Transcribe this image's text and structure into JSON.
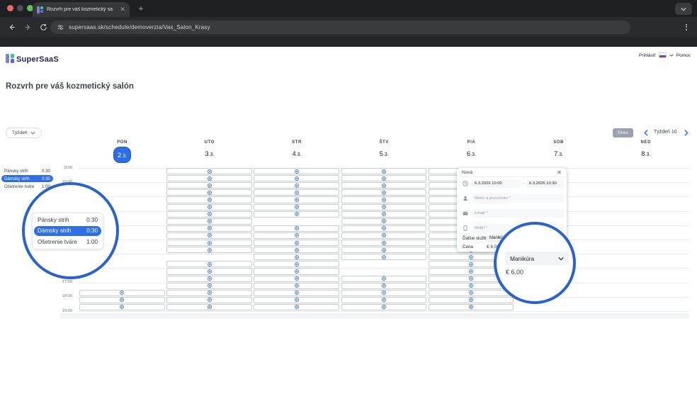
{
  "browser": {
    "tab_title": "Rozvrh pre váš kozmetický sa",
    "url": "supersaas.sk/schedule/demoverzia/Vas_Salon_Krasy"
  },
  "site": {
    "brand": "SuperSaaS",
    "login_label": "Prihlásiť",
    "help_label": "Pomoc"
  },
  "page": {
    "title": "Rozvrh pre váš kozmetický salón"
  },
  "controls": {
    "view_label": "Týždeň",
    "today_label": "Dnes",
    "week_label": "Týždeň 10"
  },
  "services": [
    {
      "name": "Pánsky strih",
      "duration": "0:30",
      "selected": false
    },
    {
      "name": "Dámsky strih",
      "duration": "0:30",
      "selected": true
    },
    {
      "name": "Ošetrenie tváre",
      "duration": "1:00",
      "selected": false
    }
  ],
  "calendar": {
    "hour_labels": [
      "9:00",
      "10:00",
      "11:00",
      "12:00",
      "13:00",
      "14:00",
      "15:00",
      "16:00",
      "17:00",
      "18:00",
      "19:00"
    ],
    "slot_times": [
      "9:00",
      "9:30",
      "10:00",
      "10:30",
      "11:00",
      "11:30",
      "12:00",
      "12:30",
      "13:00",
      "13:30",
      "14:00",
      "14:30",
      "15:00",
      "15:30",
      "16:00",
      "16:30",
      "17:00",
      "17:30",
      "18:00",
      "18:30"
    ],
    "days": [
      {
        "abbr": "PON",
        "date_num": "2",
        "date_suffix": ".3.",
        "today": true,
        "slots": [
          "17:30",
          "18:00",
          "18:30"
        ]
      },
      {
        "abbr": "UTO",
        "date_num": "3",
        "date_suffix": ".3.",
        "today": false,
        "slots": [
          "9:00",
          "9:30",
          "10:00",
          "10:30",
          "11:00",
          "11:30",
          "12:00",
          "12:30",
          "13:00",
          "13:30",
          "14:00",
          "14:30",
          "15:30",
          "16:00",
          "16:30",
          "17:00",
          "17:30",
          "18:00",
          "18:30"
        ]
      },
      {
        "abbr": "STR",
        "date_num": "4",
        "date_suffix": ".3.",
        "today": false,
        "slots": [
          "9:00",
          "9:30",
          "10:00",
          "10:30",
          "11:00",
          "11:30",
          "12:00",
          "13:00",
          "13:30",
          "14:00",
          "14:30",
          "15:00",
          "15:30",
          "16:00",
          "16:30",
          "17:00",
          "17:30",
          "18:00",
          "18:30"
        ]
      },
      {
        "abbr": "ŠTV",
        "date_num": "5",
        "date_suffix": ".3.",
        "today": false,
        "slots": [
          "9:00",
          "9:30",
          "10:00",
          "10:30",
          "11:00",
          "11:30",
          "12:00",
          "12:30",
          "13:00",
          "13:30",
          "14:00",
          "14:30",
          "15:00",
          "16:30",
          "17:00",
          "17:30",
          "18:00",
          "18:30"
        ]
      },
      {
        "abbr": "PIA",
        "date_num": "6",
        "date_suffix": ".3.",
        "today": false,
        "slots": [
          "9:00",
          "9:30",
          "10:00",
          "10:30",
          "11:00",
          "11:30",
          "12:00",
          "12:30",
          "13:00",
          "13:30",
          "14:00",
          "14:30",
          "15:00",
          "15:30",
          "16:00",
          "16:30",
          "17:00",
          "17:30",
          "18:00",
          "18:30"
        ]
      },
      {
        "abbr": "SOB",
        "date_num": "7",
        "date_suffix": ".3.",
        "today": false,
        "slots": []
      },
      {
        "abbr": "NED",
        "date_num": "8",
        "date_suffix": ".3.",
        "today": false,
        "slots": []
      }
    ]
  },
  "popup": {
    "title": "Nová",
    "start": "6.3.2026 10:00",
    "end": "6.3.2026 10:30",
    "name_placeholder": "Meno a priezvisko *",
    "email_placeholder": "Email *",
    "mobile_placeholder": "Mobil *",
    "extra_services_label": "Ďalšie služby",
    "extra_services_value": "Manikúra",
    "price_label": "Cena",
    "price_value": "€ 6,00"
  },
  "magnifier": {
    "service_value": "Manikúra",
    "price_value": "€ 6,00"
  },
  "colors": {
    "accent_blue": "#2f6fe4",
    "magnifier_ring": "#2a63c9",
    "slot_icon": "#3f7be8",
    "today_button_gray": "#97a1af"
  }
}
